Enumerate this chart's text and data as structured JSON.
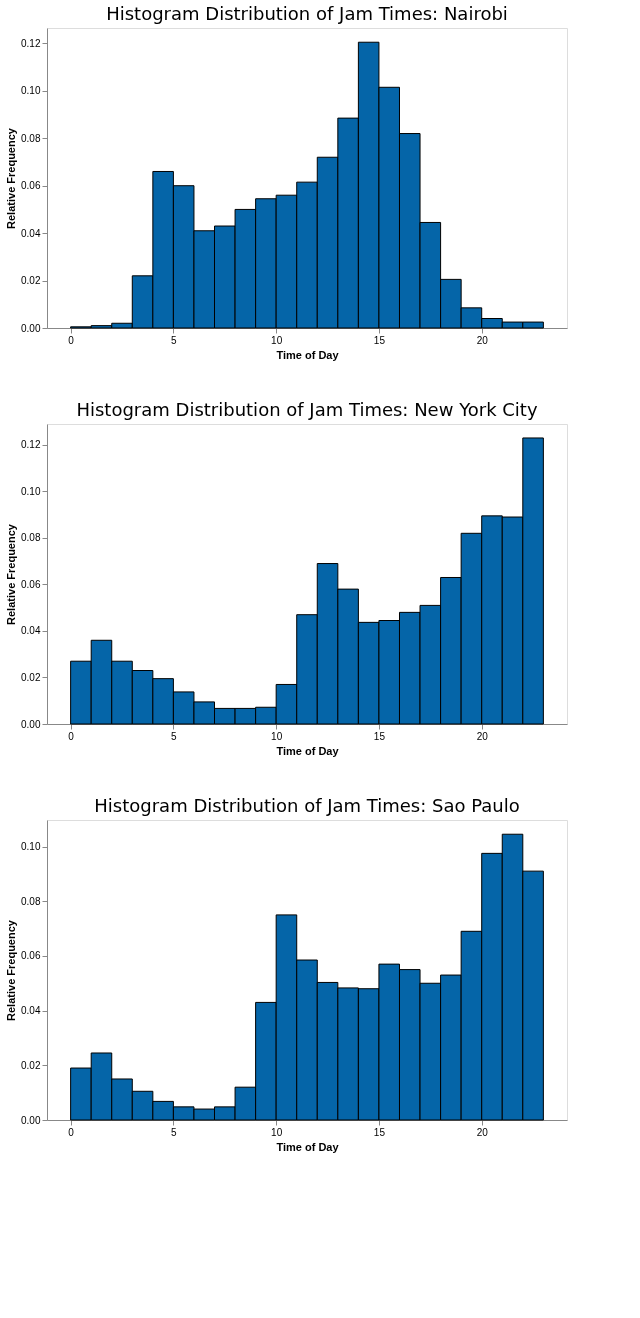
{
  "chart_data": [
    {
      "type": "histogram",
      "title": "Histogram Distribution of Jam Times: Nairobi",
      "xlabel": "Time of Day",
      "ylabel": "Relative Frequency",
      "color": "#0565a8",
      "grid": false,
      "bins": [
        0,
        1,
        2,
        3,
        4,
        5,
        6,
        7,
        8,
        9,
        10,
        11,
        12,
        13,
        14,
        15,
        16,
        17,
        18,
        19,
        20,
        21,
        22,
        23
      ],
      "values": [
        0.0005,
        0.001,
        0.002,
        0.022,
        0.066,
        0.06,
        0.041,
        0.043,
        0.05,
        0.0545,
        0.056,
        0.0615,
        0.072,
        0.0885,
        0.1205,
        0.1015,
        0.082,
        0.0445,
        0.0205,
        0.0085,
        0.004,
        0.0025,
        0.0025
      ],
      "xlim": [
        -1.15,
        24.15
      ],
      "xticks": [
        0,
        5,
        10,
        15,
        20
      ],
      "ylim": [
        0,
        0.1265
      ],
      "yticks": [
        {
          "value": 0,
          "label": "0.00"
        },
        {
          "value": 0.02,
          "label": "0.02"
        },
        {
          "value": 0.04,
          "label": "0.04"
        },
        {
          "value": 0.06,
          "label": "0.06"
        },
        {
          "value": 0.08,
          "label": "0.08"
        },
        {
          "value": 0.1,
          "label": "0.10"
        },
        {
          "value": 0.12,
          "label": "0.12"
        }
      ]
    },
    {
      "type": "histogram",
      "title": "Histogram Distribution of Jam Times: New York City",
      "xlabel": "Time of Day",
      "ylabel": "Relative Frequency",
      "color": "#0565a8",
      "grid": false,
      "bins": [
        0,
        1,
        2,
        3,
        4,
        5,
        6,
        7,
        8,
        9,
        10,
        11,
        12,
        13,
        14,
        15,
        16,
        17,
        18,
        19,
        20,
        21,
        22,
        23
      ],
      "values": [
        0.027,
        0.036,
        0.027,
        0.023,
        0.0195,
        0.0138,
        0.0095,
        0.0067,
        0.0067,
        0.0072,
        0.017,
        0.047,
        0.069,
        0.058,
        0.0437,
        0.0445,
        0.048,
        0.051,
        0.063,
        0.082,
        0.0895,
        0.089,
        0.123
      ],
      "xlim": [
        -1.15,
        24.15
      ],
      "xticks": [
        0,
        5,
        10,
        15,
        20
      ],
      "ylim": [
        0,
        0.129
      ],
      "yticks": [
        {
          "value": 0,
          "label": "0.00"
        },
        {
          "value": 0.02,
          "label": "0.02"
        },
        {
          "value": 0.04,
          "label": "0.04"
        },
        {
          "value": 0.06,
          "label": "0.06"
        },
        {
          "value": 0.08,
          "label": "0.08"
        },
        {
          "value": 0.1,
          "label": "0.10"
        },
        {
          "value": 0.12,
          "label": "0.12"
        }
      ]
    },
    {
      "type": "histogram",
      "title": "Histogram Distribution of Jam Times: Sao Paulo",
      "xlabel": "Time of Day",
      "ylabel": "Relative Frequency",
      "color": "#0565a8",
      "grid": false,
      "bins": [
        0,
        1,
        2,
        3,
        4,
        5,
        6,
        7,
        8,
        9,
        10,
        11,
        12,
        13,
        14,
        15,
        16,
        17,
        18,
        19,
        20,
        21,
        22,
        23
      ],
      "values": [
        0.019,
        0.0245,
        0.015,
        0.0105,
        0.0068,
        0.0048,
        0.004,
        0.0048,
        0.012,
        0.043,
        0.075,
        0.0585,
        0.0503,
        0.0483,
        0.048,
        0.057,
        0.055,
        0.05,
        0.053,
        0.069,
        0.0975,
        0.1045,
        0.091
      ],
      "xlim": [
        -1.15,
        24.15
      ],
      "xticks": [
        0,
        5,
        10,
        15,
        20
      ],
      "ylim": [
        0,
        0.1097
      ],
      "yticks": [
        {
          "value": 0,
          "label": "0.00"
        },
        {
          "value": 0.02,
          "label": "0.02"
        },
        {
          "value": 0.04,
          "label": "0.04"
        },
        {
          "value": 0.06,
          "label": "0.06"
        },
        {
          "value": 0.08,
          "label": "0.08"
        },
        {
          "value": 0.1,
          "label": "0.10"
        }
      ]
    }
  ]
}
